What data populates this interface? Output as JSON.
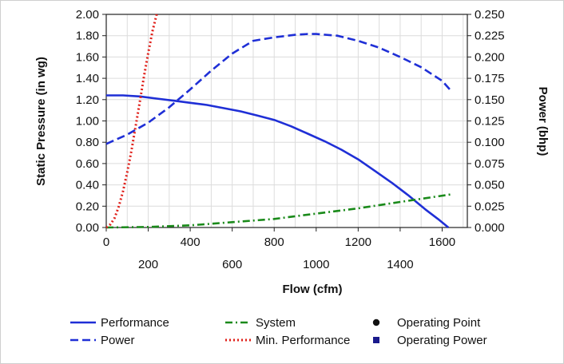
{
  "chart_data": {
    "type": "line",
    "xlabel": "Flow (cfm)",
    "ylabel": "Static Pressure (in wg)",
    "y2label": "Power (bhp)",
    "xlim": [
      0,
      1720
    ],
    "ylim": [
      0,
      2.0
    ],
    "y2lim": [
      0,
      0.25
    ],
    "grid": true,
    "x_ticks_upper": [
      "0",
      "400",
      "800",
      "1200",
      "1600"
    ],
    "x_ticks_lower": [
      "200",
      "600",
      "1000",
      "1400"
    ],
    "x_ticks_upper_values": [
      0,
      400,
      800,
      1200,
      1600
    ],
    "x_ticks_lower_values": [
      200,
      600,
      1000,
      1400
    ],
    "y_ticks": [
      "0.00",
      "0.20",
      "0.40",
      "0.60",
      "0.80",
      "1.00",
      "1.20",
      "1.40",
      "1.60",
      "1.80",
      "2.00"
    ],
    "y2_ticks": [
      "0.000",
      "0.025",
      "0.050",
      "0.075",
      "0.100",
      "0.125",
      "0.150",
      "0.175",
      "0.200",
      "0.225",
      "0.250"
    ],
    "series": [
      {
        "name": "Performance",
        "axis": "left",
        "color": "#1f2fd6",
        "dash": "solid",
        "x": [
          0,
          80,
          160,
          240,
          320,
          400,
          480,
          560,
          640,
          720,
          800,
          880,
          960,
          1040,
          1120,
          1200,
          1280,
          1360,
          1440,
          1520,
          1580,
          1630
        ],
        "y": [
          1.24,
          1.24,
          1.23,
          1.21,
          1.19,
          1.17,
          1.15,
          1.12,
          1.09,
          1.05,
          1.01,
          0.95,
          0.88,
          0.81,
          0.73,
          0.64,
          0.53,
          0.42,
          0.3,
          0.17,
          0.08,
          0.0
        ]
      },
      {
        "name": "Power",
        "axis": "right",
        "color": "#1f2fd6",
        "dash": "dashed",
        "x": [
          0,
          100,
          200,
          300,
          400,
          500,
          600,
          700,
          800,
          900,
          960,
          1000,
          1100,
          1200,
          1300,
          1400,
          1500,
          1600,
          1640
        ],
        "y": [
          0.098,
          0.109,
          0.123,
          0.141,
          0.162,
          0.184,
          0.204,
          0.219,
          0.223,
          0.226,
          0.227,
          0.227,
          0.225,
          0.219,
          0.211,
          0.2,
          0.188,
          0.172,
          0.161
        ]
      },
      {
        "name": "System",
        "axis": "left",
        "color": "#1a8a1a",
        "dash": "dashdot",
        "x": [
          0,
          200,
          400,
          600,
          800,
          1000,
          1200,
          1400,
          1640
        ],
        "y": [
          0.0,
          0.005,
          0.02,
          0.05,
          0.08,
          0.13,
          0.18,
          0.24,
          0.31
        ]
      },
      {
        "name": "Min. Performance",
        "axis": "left",
        "color": "#e0201a",
        "dash": "dotted",
        "x": [
          0,
          20,
          40,
          60,
          80,
          100,
          120,
          140,
          160,
          180,
          200,
          220,
          240
        ],
        "y": [
          0.0,
          0.03,
          0.09,
          0.2,
          0.34,
          0.52,
          0.72,
          0.95,
          1.18,
          1.42,
          1.64,
          1.84,
          2.0
        ]
      }
    ],
    "legend": {
      "placement": "bottom",
      "items": [
        {
          "label": "Performance",
          "kind": "solid",
          "color": "#1f2fd6"
        },
        {
          "label": "System",
          "kind": "dashdot",
          "color": "#1a8a1a"
        },
        {
          "label": "Operating Point",
          "kind": "circle",
          "color": "#111111"
        },
        {
          "label": "Power",
          "kind": "dashed",
          "color": "#1f2fd6"
        },
        {
          "label": "Min. Performance",
          "kind": "dotted",
          "color": "#e0201a"
        },
        {
          "label": "Operating Power",
          "kind": "square",
          "color": "#1a1a8c"
        }
      ]
    }
  }
}
